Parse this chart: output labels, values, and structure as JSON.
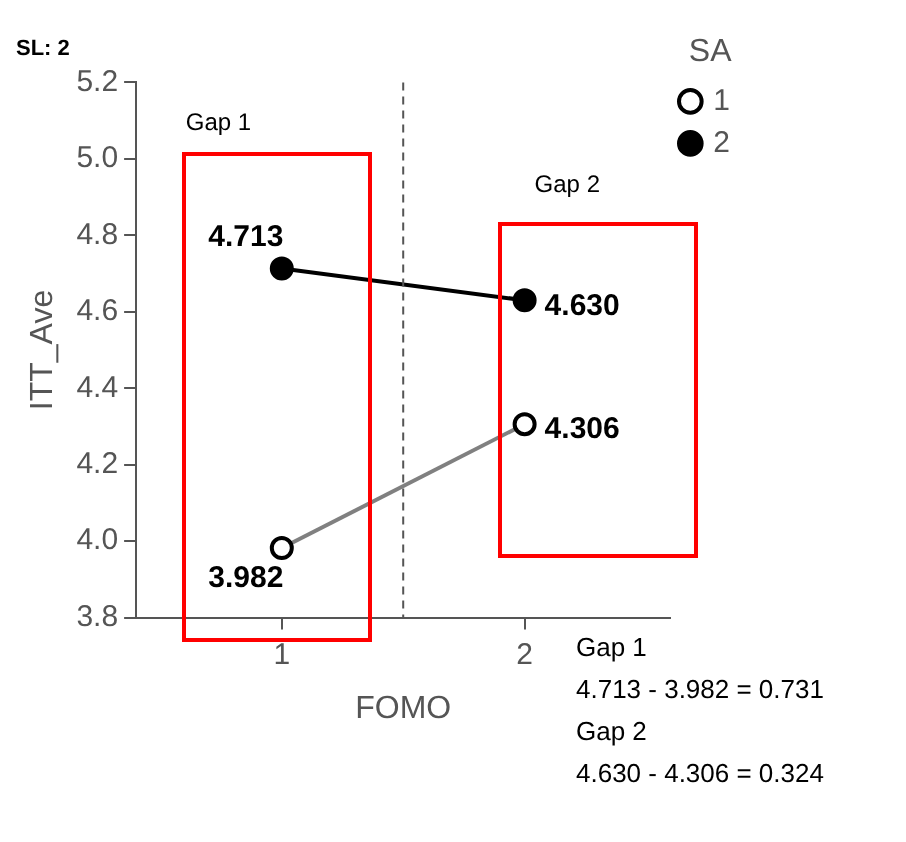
{
  "chart_data": {
    "type": "line",
    "title": "SL: 2",
    "xlabel": "FOMO",
    "ylabel": "ITT_Ave",
    "legend_title": "SA",
    "legend": "top right",
    "grid": false,
    "marker": "circle",
    "x": [
      1,
      2
    ],
    "xlim": [
      0.4,
      2.6
    ],
    "xticks": [
      1,
      2
    ],
    "ylim": [
      3.8,
      5.2
    ],
    "yticks": [
      {
        "value": 3.8,
        "label": "3.8"
      },
      {
        "value": 4,
        "label": "4.0"
      },
      {
        "value": 4.2,
        "label": "4.2"
      },
      {
        "value": 4.4,
        "label": "4.4"
      },
      {
        "value": 4.6,
        "label": "4.6"
      },
      {
        "value": 4.8,
        "label": "4.8"
      },
      {
        "value": 5,
        "label": "5.0"
      },
      {
        "value": 5.2,
        "label": "5.2"
      }
    ],
    "series": [
      {
        "name": "1",
        "color": "#808080",
        "values": [
          3.982,
          4.306
        ],
        "value_labels": [
          "3.982",
          "4.306"
        ]
      },
      {
        "name": "2",
        "color": "#000000",
        "values": [
          4.713,
          4.63
        ],
        "value_labels": [
          "4.713",
          "4.630"
        ]
      }
    ],
    "ref_lines": [
      {
        "axis": "x",
        "value": 1.5,
        "color": "#555555",
        "line_style": "dashed"
      }
    ],
    "annotations": [
      "Gap 1",
      "Gap 2",
      "Gap 1",
      "4.713 - 3.982 = 0.731",
      "Gap 2",
      "4.630 - 4.306 = 0.324"
    ]
  }
}
